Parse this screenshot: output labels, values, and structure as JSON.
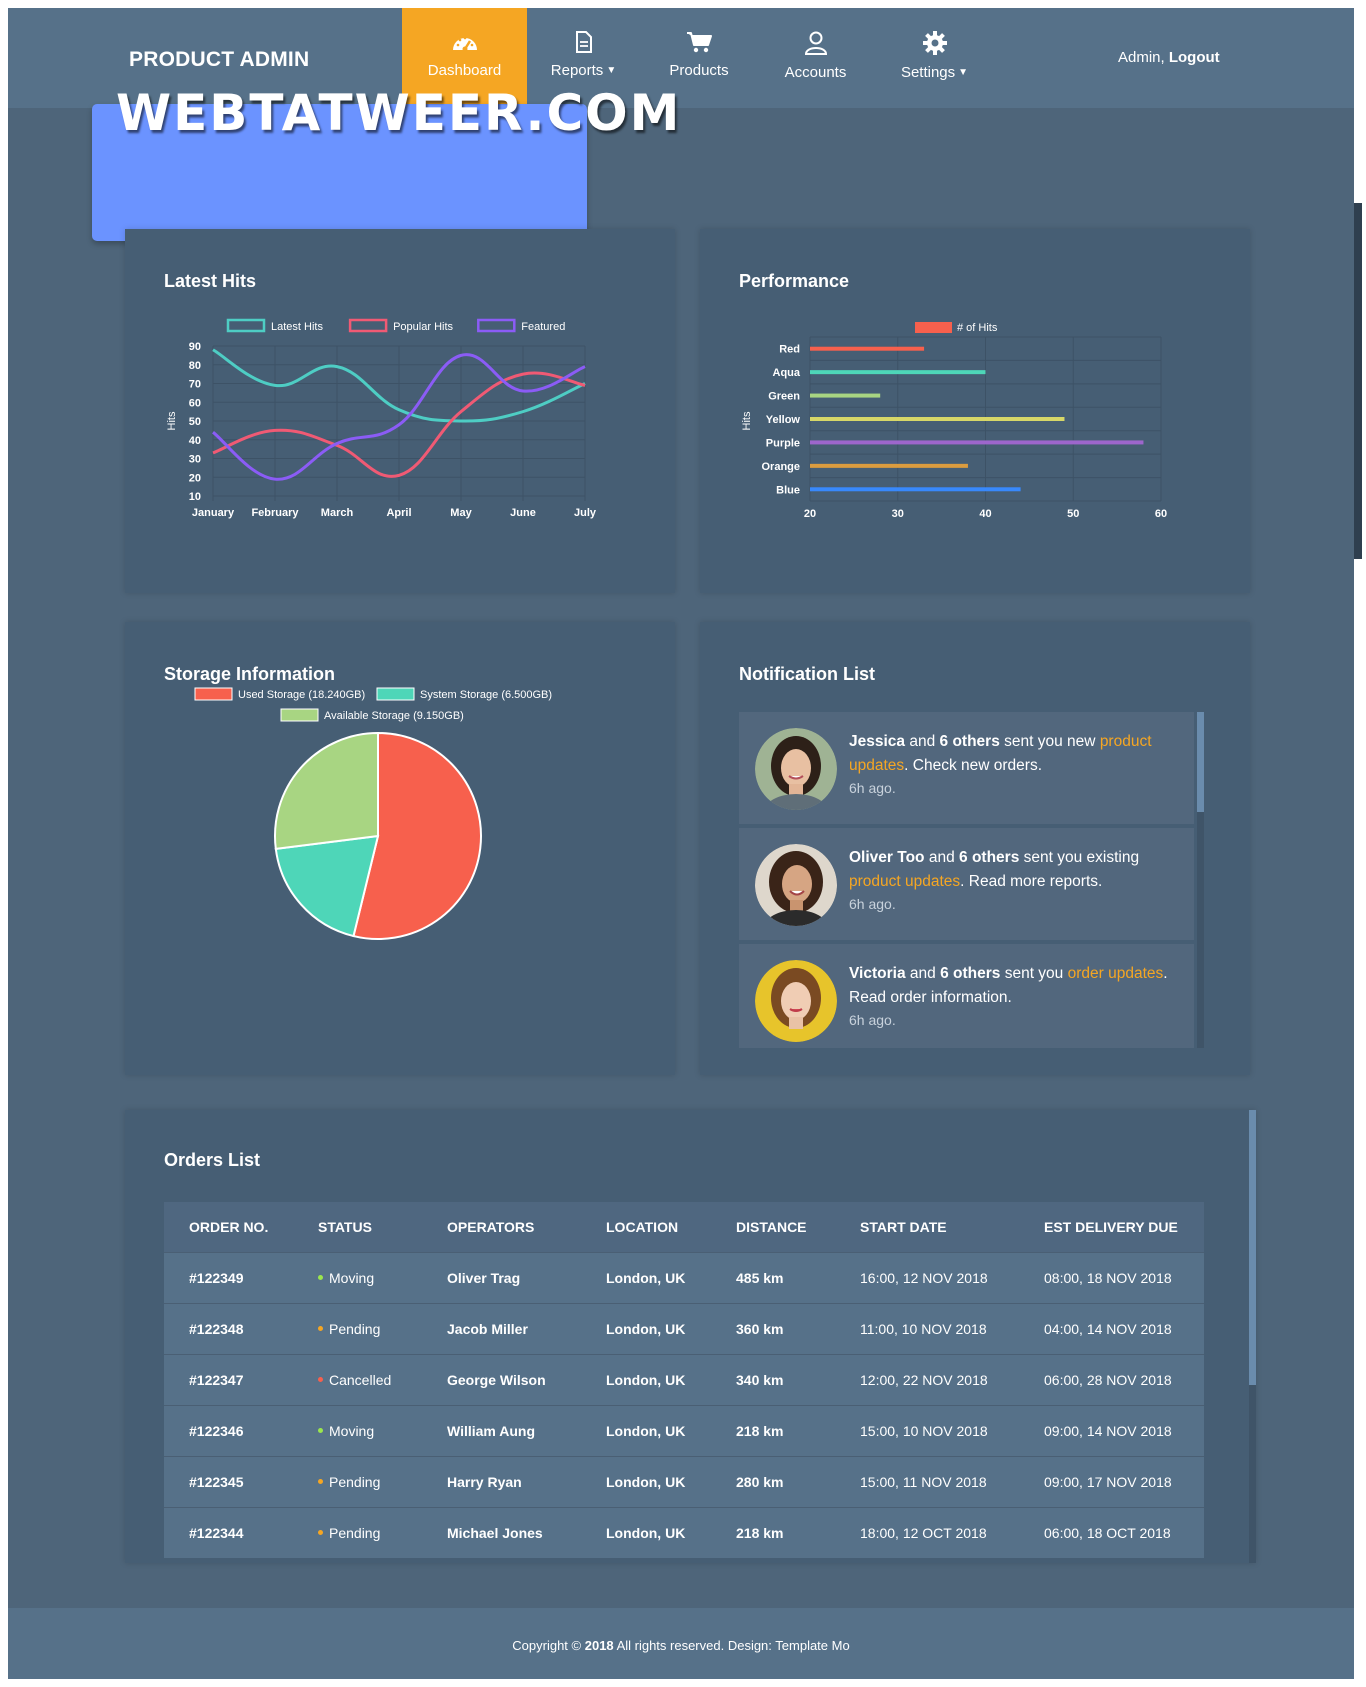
{
  "header": {
    "brand": "PRODUCT ADMIN",
    "nav": [
      {
        "label": "Dashboard",
        "icon": "tachometer-icon",
        "active": true
      },
      {
        "label": "Reports",
        "icon": "file-icon",
        "dropdown": true
      },
      {
        "label": "Products",
        "icon": "shopping-cart-icon"
      },
      {
        "label": "Accounts",
        "icon": "user-icon"
      },
      {
        "label": "Settings",
        "icon": "gear-icon",
        "dropdown": true
      }
    ],
    "user": "Admin,",
    "logout": "Logout"
  },
  "watermark": "WEBTATWEER.COM",
  "latest_hits": {
    "title": "Latest Hits"
  },
  "performance": {
    "title": "Performance"
  },
  "storage": {
    "title": "Storage Information"
  },
  "notifications": {
    "title": "Notification List",
    "items": [
      {
        "name": "Jessica",
        "count_text": "6 others",
        "pre": "sent you new",
        "highlight": "product updates",
        "post": ". Check new orders.",
        "time": "6h ago."
      },
      {
        "name": "Oliver Too",
        "count_text": "6 others",
        "pre": "sent you existing",
        "highlight": "product updates",
        "post": ". Read more reports.",
        "time": "6h ago."
      },
      {
        "name": "Victoria",
        "count_text": "6 others",
        "pre": "sent you",
        "highlight": "order updates",
        "post": ". Read order information.",
        "time": "6h ago."
      }
    ],
    "and_text": "and"
  },
  "orders": {
    "title": "Orders List",
    "columns": [
      "ORDER NO.",
      "STATUS",
      "OPERATORS",
      "LOCATION",
      "DISTANCE",
      "START DATE",
      "EST DELIVERY DUE"
    ],
    "rows": [
      {
        "no": "#122349",
        "status": "Moving",
        "status_color": "#9be64d",
        "operator": "Oliver Trag",
        "location": "London, UK",
        "distance": "485 km",
        "start": "16:00, 12 NOV 2018",
        "due": "08:00, 18 NOV 2018"
      },
      {
        "no": "#122348",
        "status": "Pending",
        "status_color": "#f5a623",
        "operator": "Jacob Miller",
        "location": "London, UK",
        "distance": "360 km",
        "start": "11:00, 10 NOV 2018",
        "due": "04:00, 14 NOV 2018"
      },
      {
        "no": "#122347",
        "status": "Cancelled",
        "status_color": "#f7604d",
        "operator": "George Wilson",
        "location": "London, UK",
        "distance": "340 km",
        "start": "12:00, 22 NOV 2018",
        "due": "06:00, 28 NOV 2018"
      },
      {
        "no": "#122346",
        "status": "Moving",
        "status_color": "#9be64d",
        "operator": "William Aung",
        "location": "London, UK",
        "distance": "218 km",
        "start": "15:00, 10 NOV 2018",
        "due": "09:00, 14 NOV 2018"
      },
      {
        "no": "#122345",
        "status": "Pending",
        "status_color": "#f5a623",
        "operator": "Harry Ryan",
        "location": "London, UK",
        "distance": "280 km",
        "start": "15:00, 11 NOV 2018",
        "due": "09:00, 17 NOV 2018"
      },
      {
        "no": "#122344",
        "status": "Pending",
        "status_color": "#f5a623",
        "operator": "Michael Jones",
        "location": "London, UK",
        "distance": "218 km",
        "start": "18:00, 12 OCT 2018",
        "due": "06:00, 18 OCT 2018"
      }
    ]
  },
  "footer": {
    "pre": "Copyright ©",
    "year": "2018",
    "post": "All rights reserved. Design: Template Mo"
  },
  "chart_data": [
    {
      "type": "line",
      "categories": [
        "January",
        "February",
        "March",
        "April",
        "May",
        "June",
        "July"
      ],
      "ylabel": "Hits",
      "ylim": [
        10,
        90
      ],
      "yticks": [
        10,
        20,
        30,
        40,
        50,
        60,
        70,
        80,
        90
      ],
      "legend_position": "top",
      "series": [
        {
          "name": "Latest Hits",
          "color": "#4ecdc4",
          "values": [
            88,
            69,
            79,
            56,
            50,
            55,
            70
          ]
        },
        {
          "name": "Popular Hits",
          "color": "#f05a74",
          "values": [
            33,
            45,
            37,
            21,
            55,
            75,
            69
          ]
        },
        {
          "name": "Featured",
          "color": "#8b5cf6",
          "values": [
            44,
            19,
            38,
            48,
            85,
            66,
            79
          ]
        }
      ]
    },
    {
      "type": "bar",
      "orientation": "horizontal",
      "categories": [
        "Red",
        "Aqua",
        "Green",
        "Yellow",
        "Purple",
        "Orange",
        "Blue"
      ],
      "values": [
        33,
        40,
        28,
        49,
        58,
        38,
        44
      ],
      "colors": [
        "#f7604d",
        "#4ed6b8",
        "#a8d582",
        "#d7d768",
        "#9d66cc",
        "#db9c3f",
        "#3889fc"
      ],
      "series_name": "# of Hits",
      "legend_color": "#f7604d",
      "ylabel": "Hits",
      "xlim": [
        20,
        60
      ],
      "xticks": [
        20,
        30,
        40,
        50,
        60
      ],
      "legend_position": "top"
    },
    {
      "type": "pie",
      "labels": [
        "Used Storage (18.240GB)",
        "System Storage (6.500GB)",
        "Available Storage (9.150GB)"
      ],
      "values": [
        18.24,
        6.5,
        9.15
      ],
      "colors": [
        "#f7604d",
        "#4ed6b8",
        "#a8d582"
      ],
      "legend_position": "top"
    }
  ]
}
